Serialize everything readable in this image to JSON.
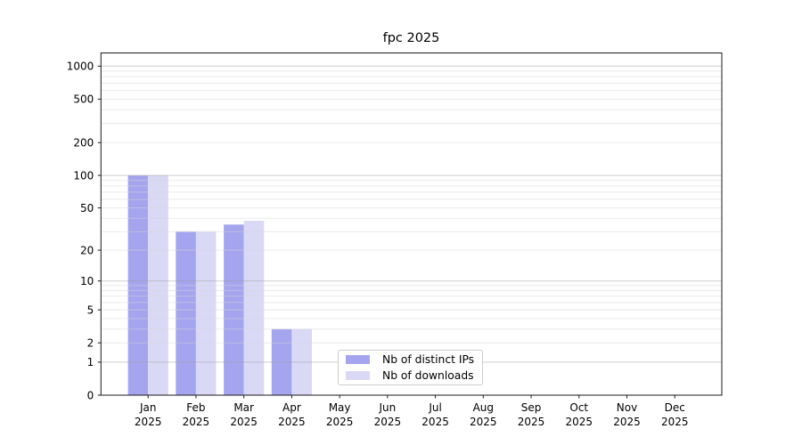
{
  "chart_data": {
    "type": "bar",
    "title": "fpc 2025",
    "categories": [
      "Jan",
      "Feb",
      "Mar",
      "Apr",
      "May",
      "Jun",
      "Jul",
      "Aug",
      "Sep",
      "Oct",
      "Nov",
      "Dec"
    ],
    "x_year_label": "2025",
    "series": [
      {
        "name": "Nb of distinct IPs",
        "color": "#a5a5ef",
        "values": [
          100,
          30,
          35,
          3,
          0,
          0,
          0,
          0,
          0,
          0,
          0,
          0
        ]
      },
      {
        "name": "Nb of downloads",
        "color": "#d9d9f6",
        "values": [
          100,
          30,
          38,
          3,
          0,
          0,
          0,
          0,
          0,
          0,
          0,
          0
        ]
      }
    ],
    "y_scale": "log10(value+1)",
    "y_tick_labels": [
      "0",
      "1",
      "2",
      "5",
      "10",
      "20",
      "50",
      "100",
      "200",
      "500",
      "1000"
    ],
    "y_tick_values": [
      0,
      1,
      2,
      5,
      10,
      20,
      50,
      100,
      200,
      500,
      1000
    ],
    "y_major_gridlines": [
      1,
      10,
      100,
      1000
    ],
    "y_minor_gridlines": [
      2,
      3,
      4,
      5,
      6,
      7,
      8,
      9,
      20,
      30,
      40,
      50,
      60,
      70,
      80,
      90,
      200,
      300,
      400,
      500,
      600,
      700,
      800,
      900
    ],
    "ylim": [
      0,
      1310
    ],
    "grid": true,
    "legend_position": "lower-center"
  }
}
